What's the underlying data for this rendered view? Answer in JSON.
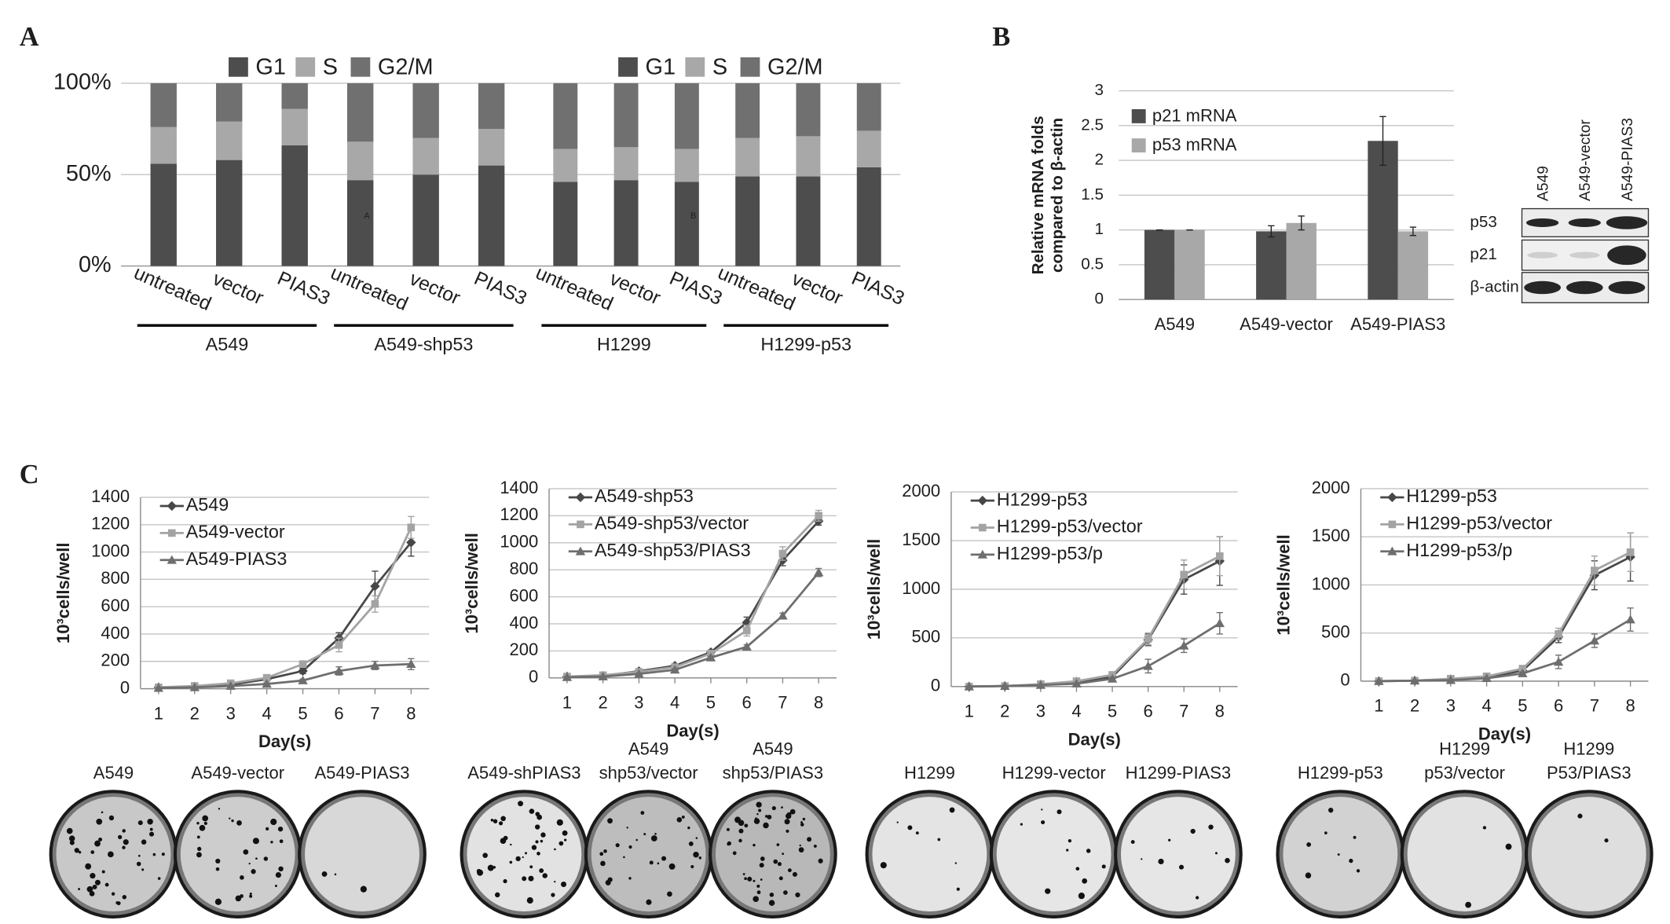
{
  "panel_labels": [
    "A",
    "B",
    "C"
  ],
  "chart_data": [
    {
      "type": "stacked_bar",
      "categories": [
        "untreated",
        "vector",
        "PIAS3",
        "untreated",
        "vector",
        "PIAS3"
      ],
      "groups": [
        "A549",
        "A549-shp53"
      ],
      "series": [
        {
          "name": "G1",
          "color": "#4d4d4d",
          "values": [
            56,
            58,
            66,
            47,
            50,
            55
          ]
        },
        {
          "name": "S",
          "color": "#a8a8a8",
          "values": [
            20,
            21,
            20,
            21,
            20,
            20
          ]
        },
        {
          "name": "G2/M",
          "color": "#707070",
          "values": [
            24,
            21,
            14,
            32,
            30,
            25
          ]
        }
      ],
      "ylim": [
        0,
        100
      ],
      "yticks": [
        {
          "value": 0,
          "label": "0%"
        },
        {
          "value": 50,
          "label": "50%"
        },
        {
          "value": 100,
          "label": "100%"
        }
      ],
      "grid": true,
      "annotation": "A"
    },
    {
      "type": "stacked_bar",
      "categories": [
        "untreated",
        "vector",
        "PIAS3",
        "untreated",
        "vector",
        "PIAS3"
      ],
      "groups": [
        "H1299",
        "H1299-p53"
      ],
      "series": [
        {
          "name": "G1",
          "color": "#4d4d4d",
          "values": [
            46,
            47,
            46,
            49,
            49,
            54
          ]
        },
        {
          "name": "S",
          "color": "#a8a8a8",
          "values": [
            18,
            18,
            18,
            21,
            22,
            20
          ]
        },
        {
          "name": "G2/M",
          "color": "#707070",
          "values": [
            36,
            35,
            36,
            30,
            29,
            26
          ]
        }
      ],
      "ylim": [
        0,
        100
      ],
      "yticks": [
        0,
        50,
        100
      ],
      "grid": true,
      "annotation": "B"
    },
    {
      "type": "bar",
      "categories": [
        "A549",
        "A549-vector",
        "A549-PIAS3"
      ],
      "series": [
        {
          "name": "p21 mRNA",
          "color": "#4d4d4d",
          "values": [
            1,
            0.98,
            2.28
          ],
          "errors": [
            0,
            0.08,
            0.35
          ]
        },
        {
          "name": "p53 mRNA",
          "color": "#a8a8a8",
          "values": [
            1,
            1.1,
            0.98
          ],
          "errors": [
            0,
            0.1,
            0.06
          ]
        }
      ],
      "ylim": [
        0,
        3
      ],
      "yticks": [
        0,
        0.5,
        1,
        1.5,
        2,
        2.5,
        3
      ],
      "y_label": [
        "Relative mRNA folds",
        "compared to β-actin"
      ],
      "grid": true,
      "legend": "top-left"
    },
    {
      "type": "line",
      "x": [
        1,
        2,
        3,
        4,
        5,
        6,
        7,
        8
      ],
      "xlim": [
        0.5,
        8.5
      ],
      "xticks": [
        1,
        2,
        3,
        4,
        5,
        6,
        7,
        8
      ],
      "ylim": [
        0,
        1400
      ],
      "yticks": [
        0,
        200,
        400,
        600,
        800,
        1000,
        1200,
        1400
      ],
      "x_label": "Day(s)",
      "y_label": "10³cells/well",
      "grid": true,
      "legend": "top-left",
      "series": [
        {
          "name": "A549",
          "color": "#474747",
          "values": [
            10,
            15,
            30,
            70,
            130,
            370,
            750,
            1070
          ],
          "errors": [
            5,
            5,
            8,
            10,
            20,
            40,
            110,
            100
          ]
        },
        {
          "name": "A549-vector",
          "color": "#a3a3a3",
          "values": [
            10,
            20,
            40,
            80,
            180,
            320,
            620,
            1180
          ],
          "errors": [
            5,
            5,
            8,
            10,
            20,
            50,
            60,
            80
          ]
        },
        {
          "name": "A549-PIAS3",
          "color": "#6e6e6e",
          "values": [
            5,
            10,
            20,
            35,
            60,
            130,
            170,
            180
          ],
          "errors": [
            3,
            4,
            5,
            8,
            10,
            30,
            30,
            40
          ]
        }
      ]
    },
    {
      "type": "line",
      "x": [
        1,
        2,
        3,
        4,
        5,
        6,
        7,
        8
      ],
      "xlim": [
        0.5,
        8.5
      ],
      "xticks": [
        1,
        2,
        3,
        4,
        5,
        6,
        7,
        8
      ],
      "ylim": [
        0,
        1400
      ],
      "yticks": [
        0,
        200,
        400,
        600,
        800,
        1000,
        1200,
        1400
      ],
      "x_label": "Day(s)",
      "y_label": "10³cells/well",
      "grid": true,
      "legend": "top-left",
      "series": [
        {
          "name": "A549-shp53",
          "color": "#474747",
          "values": [
            10,
            15,
            50,
            90,
            190,
            410,
            870,
            1160
          ],
          "errors": [
            5,
            5,
            8,
            10,
            15,
            40,
            40,
            30
          ]
        },
        {
          "name": "A549-shp53/vector",
          "color": "#a3a3a3",
          "values": [
            10,
            20,
            45,
            80,
            180,
            350,
            920,
            1200
          ],
          "errors": [
            5,
            5,
            8,
            10,
            15,
            40,
            50,
            40
          ]
        },
        {
          "name": "A549-shp53/PIAS3",
          "color": "#6e6e6e",
          "values": [
            5,
            10,
            30,
            60,
            150,
            230,
            460,
            780
          ],
          "errors": [
            3,
            4,
            5,
            8,
            10,
            15,
            20,
            30
          ]
        }
      ]
    },
    {
      "type": "line",
      "x": [
        1,
        2,
        3,
        4,
        5,
        6,
        7,
        8
      ],
      "xlim": [
        0.5,
        8.5
      ],
      "xticks": [
        1,
        2,
        3,
        4,
        5,
        6,
        7,
        8
      ],
      "ylim": [
        0,
        2000
      ],
      "yticks": [
        0,
        500,
        1000,
        1500,
        2000
      ],
      "x_label": "Day(s)",
      "y_label": "10³cells/well",
      "grid": true,
      "legend": "top-left",
      "series": [
        {
          "name": "H1299-p53",
          "color": "#474747",
          "values": [
            0,
            5,
            20,
            50,
            100,
            480,
            1100,
            1290
          ],
          "errors": [
            3,
            4,
            5,
            10,
            20,
            60,
            150,
            250
          ]
        },
        {
          "name": "H1299-p53/vector",
          "color": "#a3a3a3",
          "values": [
            0,
            5,
            25,
            55,
            120,
            490,
            1150,
            1340
          ],
          "errors": [
            3,
            4,
            5,
            10,
            20,
            60,
            150,
            200
          ]
        },
        {
          "name": "H1299-p53/p",
          "color": "#6e6e6e",
          "values": [
            0,
            5,
            15,
            30,
            80,
            210,
            420,
            650
          ],
          "errors": [
            3,
            4,
            5,
            8,
            15,
            70,
            70,
            110
          ]
        }
      ]
    },
    {
      "type": "line",
      "x": [
        1,
        2,
        3,
        4,
        5,
        6,
        7,
        8
      ],
      "xlim": [
        0.5,
        8.5
      ],
      "xticks": [
        1,
        2,
        3,
        4,
        5,
        6,
        7,
        8
      ],
      "ylim": [
        0,
        2000
      ],
      "yticks": [
        0,
        500,
        1000,
        1500,
        2000
      ],
      "x_label": "Day(s)",
      "y_label": "10³cells/well",
      "grid": true,
      "legend": "top-left",
      "series": [
        {
          "name": "H1299-p53",
          "color": "#474747",
          "values": [
            0,
            5,
            20,
            40,
            110,
            460,
            1100,
            1290
          ],
          "errors": [
            3,
            4,
            5,
            10,
            20,
            60,
            150,
            250
          ]
        },
        {
          "name": "H1299-p53/vector",
          "color": "#a3a3a3",
          "values": [
            0,
            5,
            25,
            50,
            130,
            490,
            1150,
            1340
          ],
          "errors": [
            3,
            4,
            5,
            10,
            20,
            60,
            150,
            200
          ]
        },
        {
          "name": "H1299-p53/p",
          "color": "#6e6e6e",
          "values": [
            0,
            5,
            10,
            30,
            80,
            200,
            420,
            640
          ],
          "errors": [
            3,
            4,
            5,
            8,
            15,
            70,
            70,
            120
          ]
        }
      ]
    }
  ],
  "blot": {
    "lanes": [
      "A549",
      "A549-vector",
      "A549-PIAS3"
    ],
    "rows": [
      "p53",
      "p21",
      "β-actin"
    ]
  },
  "colony_assays": [
    [
      "A549"
    ],
    [
      "A549-vector"
    ],
    [
      "A549-PIAS3"
    ],
    [
      "A549-shPIAS3"
    ],
    [
      "A549",
      "shp53/vector"
    ],
    [
      "A549",
      "shp53/PIAS3"
    ],
    [
      "H1299"
    ],
    [
      "H1299-vector"
    ],
    [
      "H1299-PIAS3"
    ],
    [
      "H1299-p53"
    ],
    [
      "H1299",
      "p53/vector"
    ],
    [
      "H1299",
      "P53/PIAS3"
    ]
  ]
}
